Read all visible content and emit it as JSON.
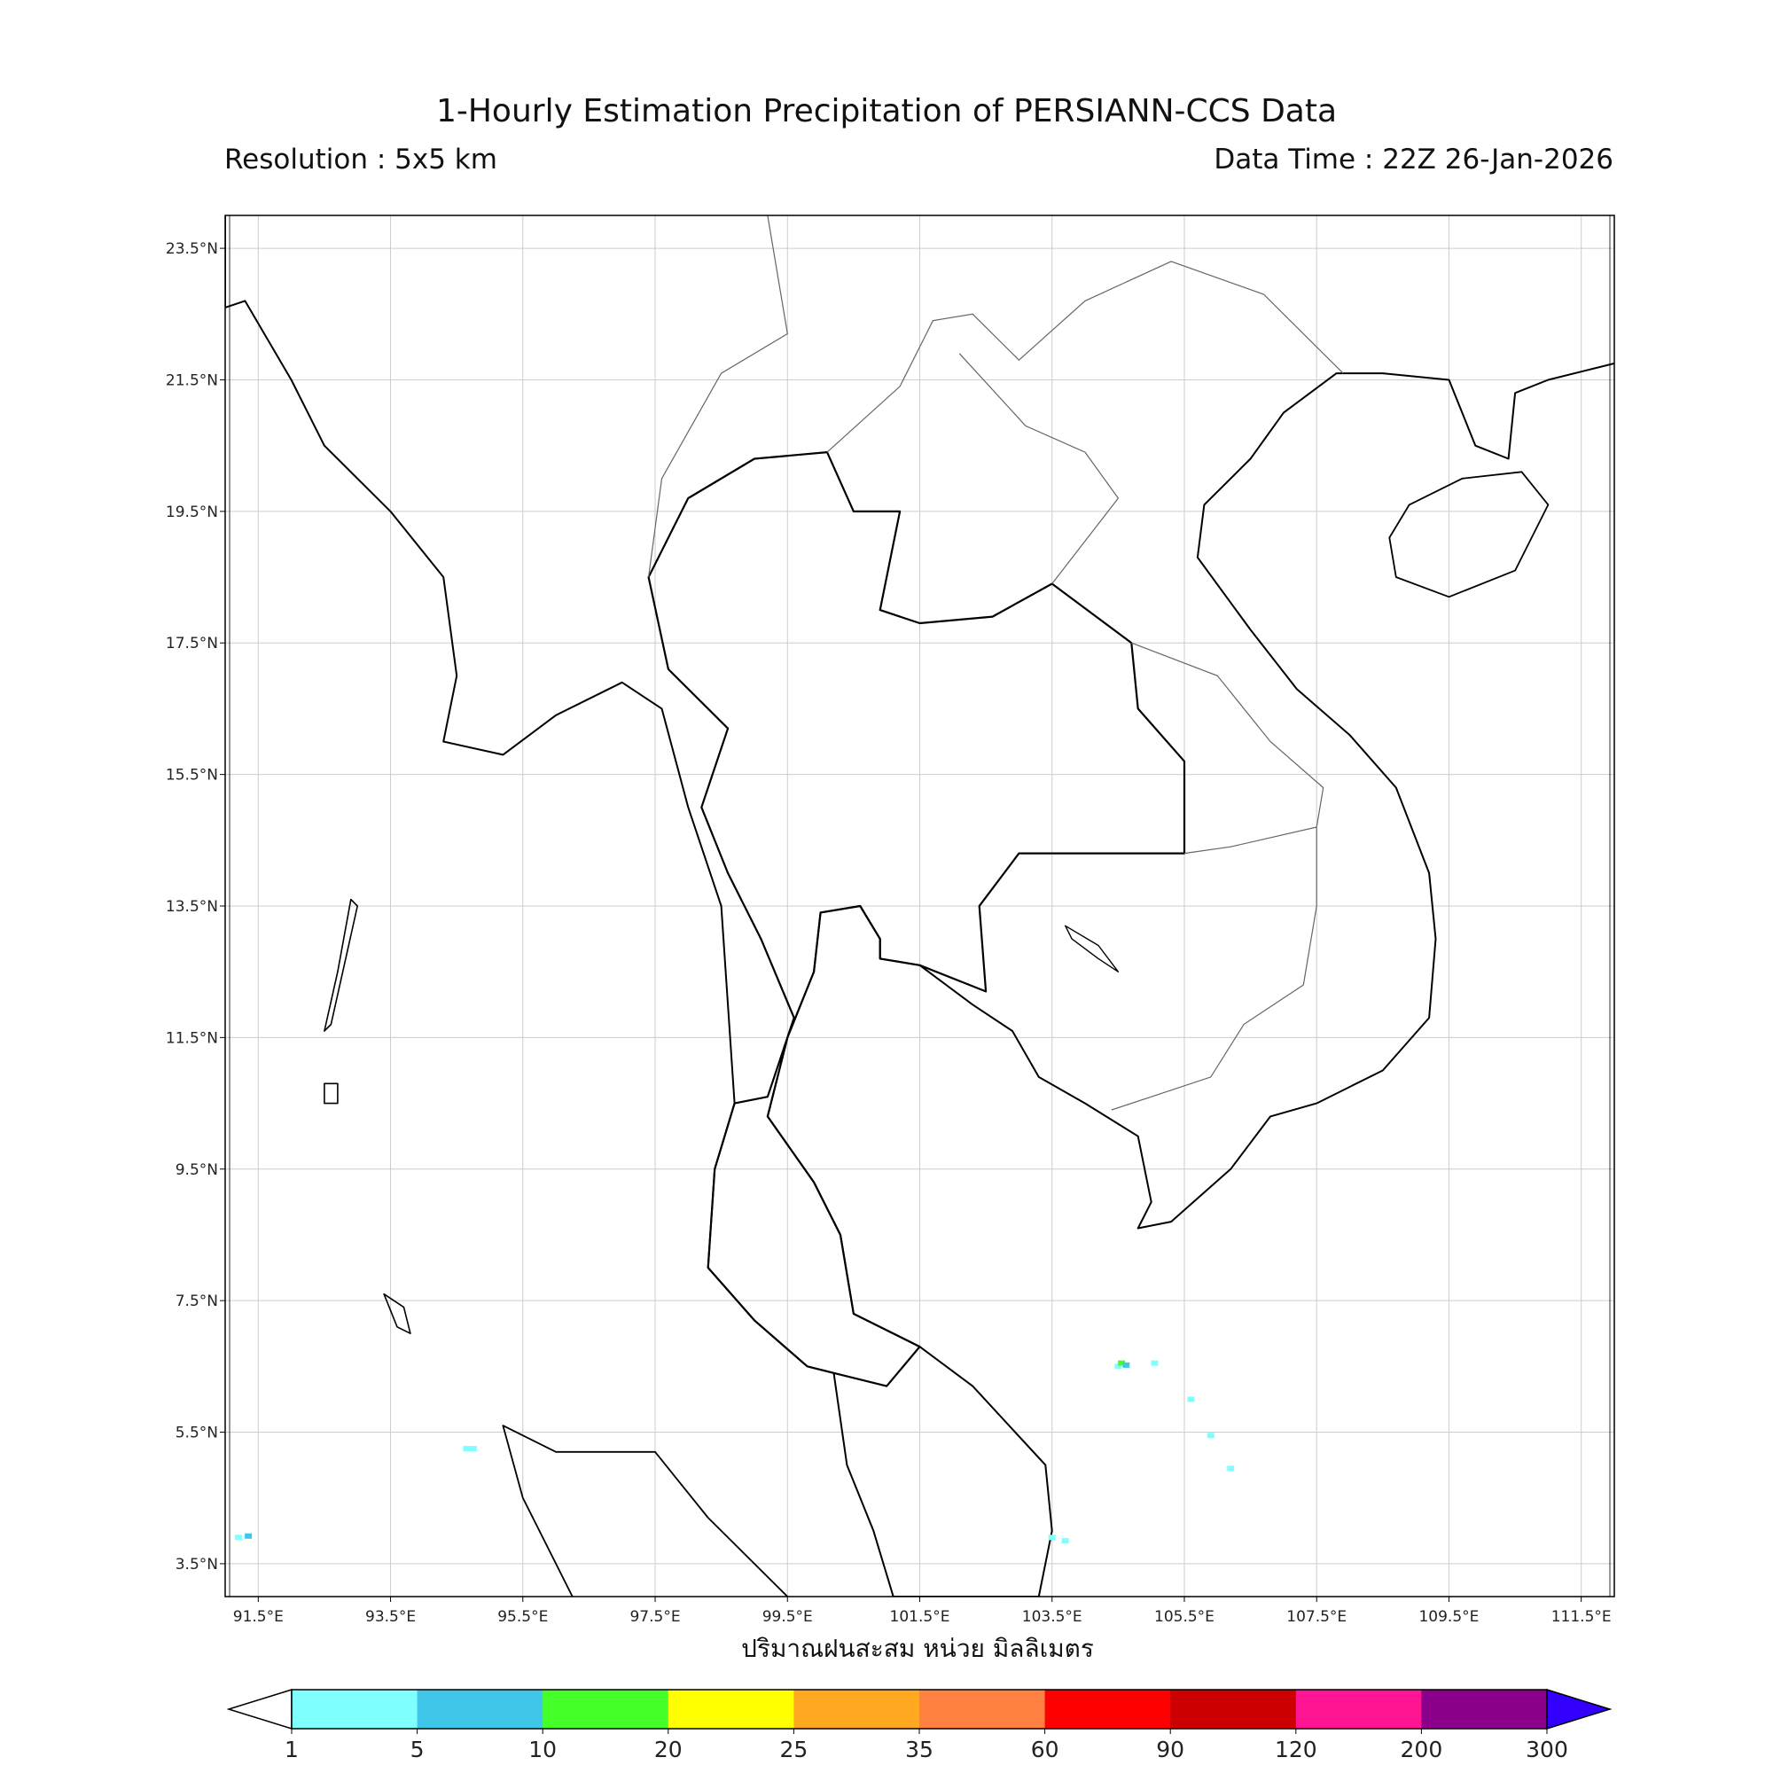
{
  "header": {
    "title": "1-Hourly Estimation Precipitation of PERSIANN-CCS Data",
    "resolution": "Resolution : 5x5 km",
    "data_time": "Data Time : 22Z 26-Jan-2026"
  },
  "map": {
    "extent": {
      "lon": [
        91,
        112
      ],
      "lat": [
        3,
        24
      ]
    },
    "lon_ticks": [
      "91.5°E",
      "93.5°E",
      "95.5°E",
      "97.5°E",
      "99.5°E",
      "101.5°E",
      "103.5°E",
      "105.5°E",
      "107.5°E",
      "109.5°E",
      "111.5°E"
    ],
    "lon_values": [
      91.5,
      93.5,
      95.5,
      97.5,
      99.5,
      101.5,
      103.5,
      105.5,
      107.5,
      109.5,
      111.5
    ],
    "lat_ticks": [
      "23.5°N",
      "21.5°N",
      "19.5°N",
      "17.5°N",
      "15.5°N",
      "13.5°N",
      "11.5°N",
      "9.5°N",
      "7.5°N",
      "5.5°N",
      "3.5°N"
    ],
    "lat_values": [
      23.5,
      21.5,
      19.5,
      17.5,
      15.5,
      13.5,
      11.5,
      9.5,
      7.5,
      5.5,
      3.5
    ],
    "grid": true,
    "precip_spots": [
      {
        "lon": 104.5,
        "lat": 6.5,
        "mm": 3
      },
      {
        "lon": 104.55,
        "lat": 6.55,
        "mm": 12
      },
      {
        "lon": 104.62,
        "lat": 6.52,
        "mm": 7
      },
      {
        "lon": 105.05,
        "lat": 6.55,
        "mm": 2
      },
      {
        "lon": 105.6,
        "lat": 6.0,
        "mm": 2
      },
      {
        "lon": 105.9,
        "lat": 5.45,
        "mm": 2
      },
      {
        "lon": 106.2,
        "lat": 4.95,
        "mm": 2
      },
      {
        "lon": 91.35,
        "lat": 3.92,
        "mm": 8
      },
      {
        "lon": 91.2,
        "lat": 3.9,
        "mm": 2
      },
      {
        "lon": 94.65,
        "lat": 5.25,
        "mm": 3
      },
      {
        "lon": 94.75,
        "lat": 5.25,
        "mm": 2
      },
      {
        "lon": 103.5,
        "lat": 3.9,
        "mm": 2
      },
      {
        "lon": 103.7,
        "lat": 3.85,
        "mm": 2
      }
    ]
  },
  "xlabel": "ปริมาณฝนสะสม หน่วย มิลลิเมตร",
  "colorbar": {
    "levels": [
      "1",
      "5",
      "10",
      "20",
      "25",
      "35",
      "60",
      "90",
      "120",
      "200",
      "300"
    ],
    "colors": [
      "#80ffff",
      "#3fc6e9",
      "#46ff2a",
      "#ffff00",
      "#ffa820",
      "#ff8040",
      "#ff0000",
      "#cc0000",
      "#ff1493",
      "#8b008b"
    ],
    "under_color": "#ffffff",
    "over_color": "#3300ff"
  }
}
